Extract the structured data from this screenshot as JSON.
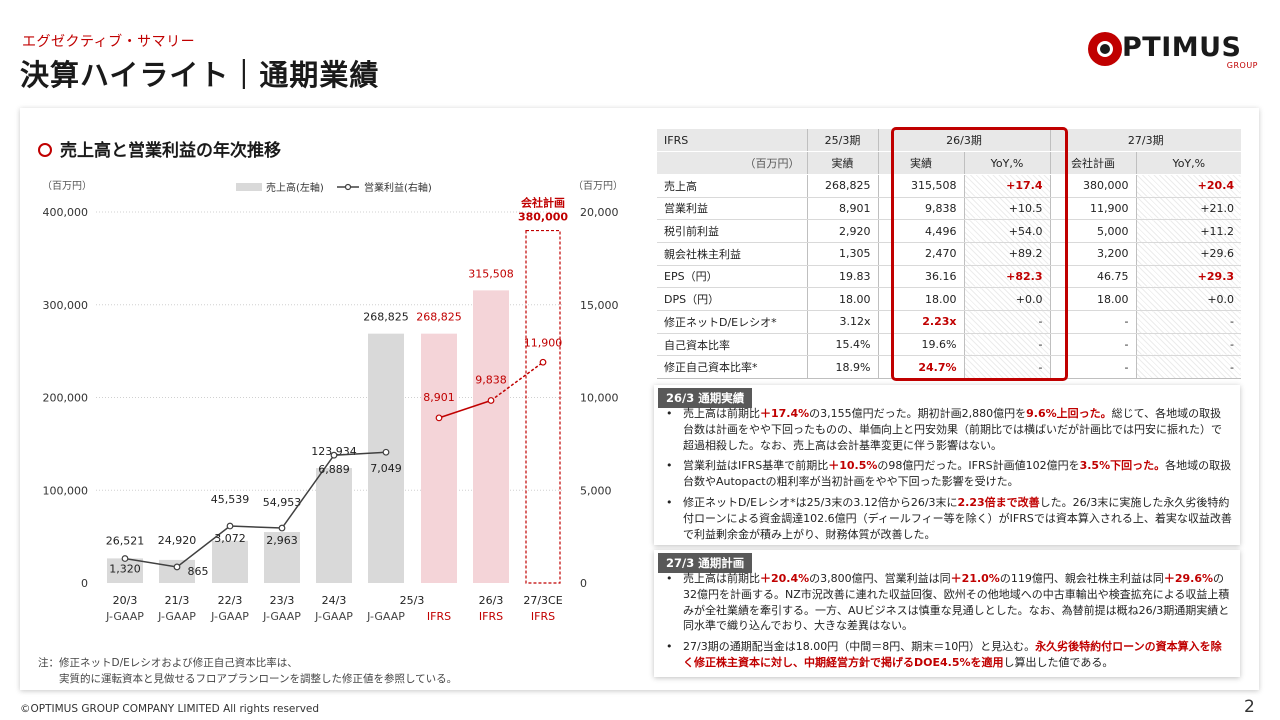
{
  "header": {
    "subtitle": "エグゼクティブ・サマリー",
    "title": "決算ハイライト｜通期業績"
  },
  "logo": {
    "text": "PTIMUS",
    "group": "GROUP",
    "brand_color": "#c00000"
  },
  "chart": {
    "title": "売上高と営業利益の年次推移"
  },
  "chart_data": {
    "type": "bar",
    "left_unit": "（百万円）",
    "right_unit": "（百万円）",
    "legend": {
      "revenue": "売上高(左軸)",
      "op_income": "営業利益(右軸)"
    },
    "left_ticks": [
      "400,000",
      "300,000",
      "200,000",
      "100,000",
      "0"
    ],
    "right_ticks": [
      "20,000",
      "15,000",
      "10,000",
      "5,000",
      "0"
    ],
    "ylim_left": [
      0,
      400000
    ],
    "ylim_right": [
      0,
      20000
    ],
    "categories": [
      {
        "period": "20/3",
        "std": "J-GAAP"
      },
      {
        "period": "21/3",
        "std": "J-GAAP"
      },
      {
        "period": "22/3",
        "std": "J-GAAP"
      },
      {
        "period": "23/3",
        "std": "J-GAAP"
      },
      {
        "period": "24/3",
        "std": "J-GAAP"
      },
      {
        "period": "25/3",
        "std": "J-GAAP"
      },
      {
        "period": "",
        "std": "IFRS"
      },
      {
        "period": "26/3",
        "std": "IFRS"
      },
      {
        "period": "27/3CE",
        "std": "IFRS"
      }
    ],
    "revenue": [
      26521,
      24920,
      45539,
      54953,
      123934,
      268825,
      268825,
      315508,
      380000
    ],
    "revenue_labels": [
      "26,521",
      "24,920",
      "45,539",
      "54,953",
      "123,934",
      "268,825",
      "268,825",
      "315,508",
      "380,000"
    ],
    "op_income_jgaap": [
      1320,
      865,
      3072,
      2963,
      6889,
      7049
    ],
    "op_income_jgaap_labels": [
      "1,320",
      "865",
      "3,072",
      "2,963",
      "6,889",
      "7,049"
    ],
    "op_income_ifrs": [
      8901,
      9838,
      11900
    ],
    "op_income_ifrs_labels": [
      "8,901",
      "9,838",
      "11,900"
    ],
    "plan_label": "会社計画",
    "colors": {
      "jgaap_bar": "#d9d9d9",
      "ifrs_bar": "#f4d4d8",
      "ifrs_line": "#c00000",
      "jgaap_line": "#404040"
    }
  },
  "table": {
    "head_std": "IFRS",
    "head_unit": "（百万円）",
    "col_groups": [
      "25/3期",
      "26/3期",
      "27/3期"
    ],
    "sub_heads": [
      "実績",
      "実績",
      "YoY,%",
      "会社計画",
      "YoY,%"
    ],
    "rows": [
      {
        "label": "売上高",
        "v25": "268,825",
        "v26": "315,508",
        "yoy26": "+17.4",
        "plan27": "380,000",
        "yoy27": "+20.4",
        "r26": false,
        "ry26": true,
        "ry27": true
      },
      {
        "label": "営業利益",
        "v25": "8,901",
        "v26": "9,838",
        "yoy26": "+10.5",
        "plan27": "11,900",
        "yoy27": "+21.0",
        "r26": false,
        "ry26": false,
        "ry27": false
      },
      {
        "label": "税引前利益",
        "v25": "2,920",
        "v26": "4,496",
        "yoy26": "+54.0",
        "plan27": "5,000",
        "yoy27": "+11.2",
        "r26": false,
        "ry26": false,
        "ry27": false
      },
      {
        "label": "親会社株主利益",
        "v25": "1,305",
        "v26": "2,470",
        "yoy26": "+89.2",
        "plan27": "3,200",
        "yoy27": "+29.6",
        "r26": false,
        "ry26": false,
        "ry27": false
      },
      {
        "label": "EPS（円）",
        "v25": "19.83",
        "v26": "36.16",
        "yoy26": "+82.3",
        "plan27": "46.75",
        "yoy27": "+29.3",
        "r26": false,
        "ry26": true,
        "ry27": true
      },
      {
        "label": "DPS（円）",
        "v25": "18.00",
        "v26": "18.00",
        "yoy26": "+0.0",
        "plan27": "18.00",
        "yoy27": "+0.0",
        "r26": false,
        "ry26": false,
        "ry27": false
      },
      {
        "label": "修正ネットD/Eレシオ*",
        "v25": "3.12x",
        "v26": "2.23x",
        "yoy26": "-",
        "plan27": "-",
        "yoy27": "-",
        "r26": true,
        "ry26": false,
        "ry27": false
      },
      {
        "label": "自己資本比率",
        "v25": "15.4%",
        "v26": "19.6%",
        "yoy26": "-",
        "plan27": "-",
        "yoy27": "-",
        "r26": false,
        "ry26": false,
        "ry27": false
      },
      {
        "label": "修正自己資本比率*",
        "v25": "18.9%",
        "v26": "24.7%",
        "yoy26": "-",
        "plan27": "-",
        "yoy27": "-",
        "r26": true,
        "ry26": false,
        "ry27": false
      }
    ]
  },
  "comment1": {
    "tag": "26/3 通期実績",
    "bullets": [
      [
        {
          "t": "売上高は前期比"
        },
        {
          "t": "＋17.4%",
          "h": true
        },
        {
          "t": "の3,155億円だった。期初計画2,880億円を"
        },
        {
          "t": "9.6%上回った。",
          "h": true
        },
        {
          "t": "総じて、各地域の取扱台数は計画をやや下回ったものの、単価向上と円安効果（前期比では横ばいだが計画比では円安に振れた）で超過相殺した。なお、売上高は会計基準変更に伴う影響はない。"
        }
      ],
      [
        {
          "t": "営業利益はIFRS基準で前期比"
        },
        {
          "t": "＋10.5%",
          "h": true
        },
        {
          "t": "の98億円だった。IFRS計画値102億円を"
        },
        {
          "t": "3.5%下回った。",
          "h": true
        },
        {
          "t": "各地域の取扱台数やAutopactの粗利率が当初計画をやや下回った影響を受けた。"
        }
      ],
      [
        {
          "t": "修正ネットD/Eレシオ*は25/3末の3.12倍から26/3末に"
        },
        {
          "t": "2.23倍まで改善",
          "h": true
        },
        {
          "t": "した。26/3末に実施した永久劣後特約付ローンによる資金調達102.6億円（ディールフィー等を除く）がIFRSでは資本算入される上、着実な収益改善で利益剰余金が積み上がり、財務体質が改善した。"
        }
      ]
    ]
  },
  "comment2": {
    "tag": "27/3 通期計画",
    "bullets": [
      [
        {
          "t": "売上高は前期比"
        },
        {
          "t": "＋20.4%",
          "h": true
        },
        {
          "t": "の3,800億円、営業利益は同"
        },
        {
          "t": "＋21.0%",
          "h": true
        },
        {
          "t": "の119億円、親会社株主利益は同"
        },
        {
          "t": "＋29.6%",
          "h": true
        },
        {
          "t": "の32億円を計画する。NZ市況改善に連れた収益回復、欧州その他地域への中古車輸出や検査拡充による収益上積みが全社業績を牽引する。一方、AUビジネスは慎重な見通しとした。なお、為替前提は概ね26/3期通期実績と同水準で織り込んでおり、大きな差異はない。"
        }
      ],
      [
        {
          "t": "27/3期の通期配当金は18.00円（中間＝8円、期末＝10円）と見込む。"
        },
        {
          "t": "永久劣後特約付ローンの資本算入を除く修正株主資本に対し、中期経営方針で掲げるDOE4.5%を適用",
          "h": true
        },
        {
          "t": "し算出した値である。"
        }
      ]
    ]
  },
  "footnote": {
    "line1": "注：修正ネットD/Eレシオおよび修正自己資本比率は、",
    "line2": "実質的に運転資本と見做せるフロアプランローンを調整した修正値を参照している。"
  },
  "footer": {
    "copyright": "©OPTIMUS GROUP COMPANY LIMITED All rights reserved",
    "page": "2"
  }
}
